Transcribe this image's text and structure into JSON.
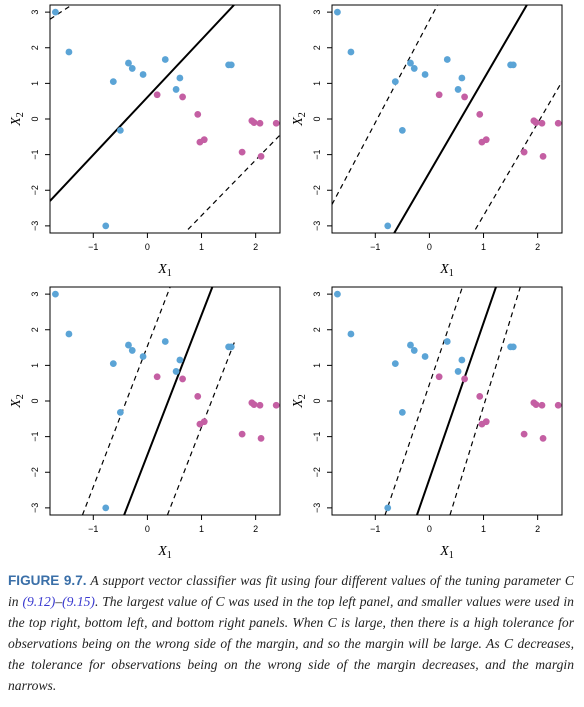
{
  "chart_data": [
    {
      "type": "scatter",
      "xlabel": "X1",
      "ylabel": "X2",
      "xlim": [
        -1.8,
        2.45
      ],
      "ylim": [
        -3.2,
        3.2
      ],
      "xticks": [
        -1,
        0,
        1,
        2
      ],
      "yticks": [
        -3,
        -2,
        -1,
        0,
        1,
        2,
        3
      ],
      "xtick_labels": [
        "−1",
        "0",
        "1",
        "2"
      ],
      "ytick_labels": [
        "−3",
        "−2",
        "−1",
        "0",
        "1",
        "2",
        "3"
      ],
      "series": [
        {
          "color": "#5ba4d6",
          "points": [
            [
              -1.7,
              3.0
            ],
            [
              -1.45,
              1.88
            ],
            [
              -0.77,
              -3.0
            ],
            [
              -0.63,
              1.05
            ],
            [
              -0.5,
              -0.32
            ],
            [
              -0.35,
              1.57
            ],
            [
              -0.28,
              1.42
            ],
            [
              -0.08,
              1.25
            ],
            [
              0.33,
              1.67
            ],
            [
              0.53,
              0.83
            ],
            [
              0.6,
              1.15
            ],
            [
              1.5,
              1.52
            ],
            [
              1.55,
              1.52
            ]
          ]
        },
        {
          "color": "#c45fa3",
          "points": [
            [
              0.18,
              0.68
            ],
            [
              0.65,
              0.62
            ],
            [
              0.93,
              0.13
            ],
            [
              0.97,
              -0.65
            ],
            [
              1.05,
              -0.58
            ],
            [
              1.75,
              -0.93
            ],
            [
              1.93,
              -0.05
            ],
            [
              1.97,
              -0.1
            ],
            [
              2.08,
              -0.12
            ],
            [
              2.1,
              -1.05
            ],
            [
              2.38,
              -0.12
            ]
          ]
        }
      ],
      "lines": [
        {
          "style": "solid",
          "x": [
            -1.8,
            1.6
          ],
          "y": [
            -2.3,
            3.2
          ]
        },
        {
          "style": "dashed",
          "x": [
            -1.8,
            -1.4
          ],
          "y": [
            2.8,
            3.2
          ]
        },
        {
          "style": "dashed",
          "x": [
            0.75,
            2.45
          ],
          "y": [
            -3.1,
            -0.45
          ]
        }
      ]
    },
    {
      "type": "scatter",
      "xlabel": "X1",
      "ylabel": "X2",
      "xlim": [
        -1.8,
        2.45
      ],
      "ylim": [
        -3.2,
        3.2
      ],
      "xticks": [
        -1,
        0,
        1,
        2
      ],
      "yticks": [
        -3,
        -2,
        -1,
        0,
        1,
        2,
        3
      ],
      "xtick_labels": [
        "−1",
        "0",
        "1",
        "2"
      ],
      "ytick_labels": [
        "−3",
        "−2",
        "−1",
        "0",
        "1",
        "2",
        "3"
      ],
      "series": [
        {
          "color": "#5ba4d6",
          "points": [
            [
              -1.7,
              3.0
            ],
            [
              -1.45,
              1.88
            ],
            [
              -0.77,
              -3.0
            ],
            [
              -0.63,
              1.05
            ],
            [
              -0.5,
              -0.32
            ],
            [
              -0.35,
              1.57
            ],
            [
              -0.28,
              1.42
            ],
            [
              -0.08,
              1.25
            ],
            [
              0.33,
              1.67
            ],
            [
              0.53,
              0.83
            ],
            [
              0.6,
              1.15
            ],
            [
              1.5,
              1.52
            ],
            [
              1.55,
              1.52
            ]
          ]
        },
        {
          "color": "#c45fa3",
          "points": [
            [
              0.18,
              0.68
            ],
            [
              0.65,
              0.62
            ],
            [
              0.93,
              0.13
            ],
            [
              0.97,
              -0.65
            ],
            [
              1.05,
              -0.58
            ],
            [
              1.75,
              -0.93
            ],
            [
              1.93,
              -0.05
            ],
            [
              1.97,
              -0.1
            ],
            [
              2.08,
              -0.12
            ],
            [
              2.1,
              -1.05
            ],
            [
              2.38,
              -0.12
            ]
          ]
        }
      ],
      "lines": [
        {
          "style": "solid",
          "x": [
            -0.65,
            1.8
          ],
          "y": [
            -3.2,
            3.2
          ]
        },
        {
          "style": "dashed",
          "x": [
            -1.8,
            0.15
          ],
          "y": [
            -2.4,
            3.2
          ]
        },
        {
          "style": "dashed",
          "x": [
            0.85,
            2.45
          ],
          "y": [
            -3.1,
            1.05
          ]
        }
      ]
    },
    {
      "type": "scatter",
      "xlabel": "X1",
      "ylabel": "X2",
      "xlim": [
        -1.8,
        2.45
      ],
      "ylim": [
        -3.2,
        3.2
      ],
      "xticks": [
        -1,
        0,
        1,
        2
      ],
      "yticks": [
        -3,
        -2,
        -1,
        0,
        1,
        2,
        3
      ],
      "xtick_labels": [
        "−1",
        "0",
        "1",
        "2"
      ],
      "ytick_labels": [
        "−3",
        "−2",
        "−1",
        "0",
        "1",
        "2",
        "3"
      ],
      "series": [
        {
          "color": "#5ba4d6",
          "points": [
            [
              -1.7,
              3.0
            ],
            [
              -1.45,
              1.88
            ],
            [
              -0.77,
              -3.0
            ],
            [
              -0.63,
              1.05
            ],
            [
              -0.5,
              -0.32
            ],
            [
              -0.35,
              1.57
            ],
            [
              -0.28,
              1.42
            ],
            [
              -0.08,
              1.25
            ],
            [
              0.33,
              1.67
            ],
            [
              0.53,
              0.83
            ],
            [
              0.6,
              1.15
            ],
            [
              1.5,
              1.52
            ],
            [
              1.55,
              1.52
            ]
          ]
        },
        {
          "color": "#c45fa3",
          "points": [
            [
              0.18,
              0.68
            ],
            [
              0.65,
              0.62
            ],
            [
              0.93,
              0.13
            ],
            [
              0.97,
              -0.65
            ],
            [
              1.05,
              -0.58
            ],
            [
              1.75,
              -0.93
            ],
            [
              1.93,
              -0.05
            ],
            [
              1.97,
              -0.1
            ],
            [
              2.08,
              -0.12
            ],
            [
              2.1,
              -1.05
            ],
            [
              2.38,
              -0.12
            ]
          ]
        }
      ],
      "lines": [
        {
          "style": "solid",
          "x": [
            -0.43,
            1.2
          ],
          "y": [
            -3.2,
            3.2
          ]
        },
        {
          "style": "dashed",
          "x": [
            -1.2,
            0.42
          ],
          "y": [
            -3.2,
            3.2
          ]
        },
        {
          "style": "dashed",
          "x": [
            0.37,
            1.62
          ],
          "y": [
            -3.2,
            1.7
          ]
        }
      ]
    },
    {
      "type": "scatter",
      "xlabel": "X1",
      "ylabel": "X2",
      "xlim": [
        -1.8,
        2.45
      ],
      "ylim": [
        -3.2,
        3.2
      ],
      "xticks": [
        -1,
        0,
        1,
        2
      ],
      "yticks": [
        -3,
        -2,
        -1,
        0,
        1,
        2,
        3
      ],
      "xtick_labels": [
        "−1",
        "0",
        "1",
        "2"
      ],
      "ytick_labels": [
        "−3",
        "−2",
        "−1",
        "0",
        "1",
        "2",
        "3"
      ],
      "series": [
        {
          "color": "#5ba4d6",
          "points": [
            [
              -1.7,
              3.0
            ],
            [
              -1.45,
              1.88
            ],
            [
              -0.77,
              -3.0
            ],
            [
              -0.63,
              1.05
            ],
            [
              -0.5,
              -0.32
            ],
            [
              -0.35,
              1.57
            ],
            [
              -0.28,
              1.42
            ],
            [
              -0.08,
              1.25
            ],
            [
              0.33,
              1.67
            ],
            [
              0.53,
              0.83
            ],
            [
              0.6,
              1.15
            ],
            [
              1.5,
              1.52
            ],
            [
              1.55,
              1.52
            ]
          ]
        },
        {
          "color": "#c45fa3",
          "points": [
            [
              0.18,
              0.68
            ],
            [
              0.65,
              0.62
            ],
            [
              0.93,
              0.13
            ],
            [
              0.97,
              -0.65
            ],
            [
              1.05,
              -0.58
            ],
            [
              1.75,
              -0.93
            ],
            [
              1.93,
              -0.05
            ],
            [
              1.97,
              -0.1
            ],
            [
              2.08,
              -0.12
            ],
            [
              2.1,
              -1.05
            ],
            [
              2.38,
              -0.12
            ]
          ]
        }
      ],
      "lines": [
        {
          "style": "solid",
          "x": [
            -0.23,
            1.23
          ],
          "y": [
            -3.2,
            3.2
          ]
        },
        {
          "style": "dashed",
          "x": [
            -0.82,
            0.61
          ],
          "y": [
            -3.2,
            3.2
          ]
        },
        {
          "style": "dashed",
          "x": [
            0.38,
            1.68
          ],
          "y": [
            -3.2,
            3.2
          ]
        }
      ]
    }
  ],
  "caption": {
    "label": "FIGURE 9.7.",
    "text_1": " A support vector classifier was fit using four different values of the tuning parameter ",
    "param_1": "C",
    "text_2": " in ",
    "ref_1": "(9.12)",
    "text_3": "–",
    "ref_2": "(9.15)",
    "text_4": ". The largest value of ",
    "param_2": "C",
    "text_5": " was used in the top left panel, and smaller values were used in the top right, bottom left, and bottom right panels. When ",
    "param_3": "C",
    "text_6": " is large, then there is a high tolerance for observations being on the wrong side of the margin, and so the margin will be large. As ",
    "param_4": "C",
    "text_7": " decreases, the tolerance for observations being on the wrong side of the margin decreases, and the margin narrows."
  }
}
